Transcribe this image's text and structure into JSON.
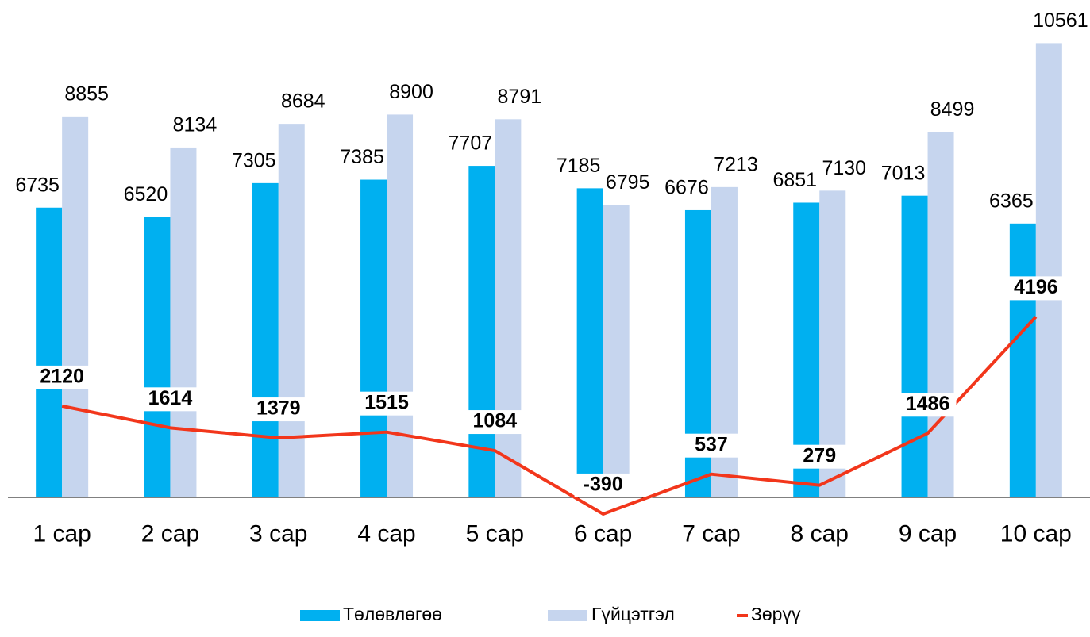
{
  "chart_data": {
    "type": "bar-line",
    "categories": [
      "1 сар",
      "2 сар",
      "3 сар",
      "4 сар",
      "5 сар",
      "6 сар",
      "7 сар",
      "8 сар",
      "9 сар",
      "10 сар"
    ],
    "series": [
      {
        "name": "Төлөвлөгөө",
        "type": "bar",
        "color": "#00b0f0",
        "values": [
          6735,
          6520,
          7305,
          7385,
          7707,
          7185,
          6676,
          6851,
          7013,
          6365
        ]
      },
      {
        "name": "Гүйцэтгэл",
        "type": "bar",
        "color": "#c6d5ee",
        "values": [
          8855,
          8134,
          8684,
          8900,
          8791,
          6795,
          7213,
          7130,
          8499,
          10561
        ]
      },
      {
        "name": "Зөрүү",
        "type": "line",
        "color": "#f2361b",
        "values": [
          2120,
          1614,
          1379,
          1515,
          1084,
          -390,
          537,
          279,
          1486,
          4196
        ]
      }
    ],
    "ylim": [
      -1000,
      11500
    ],
    "legend": "bottom"
  }
}
